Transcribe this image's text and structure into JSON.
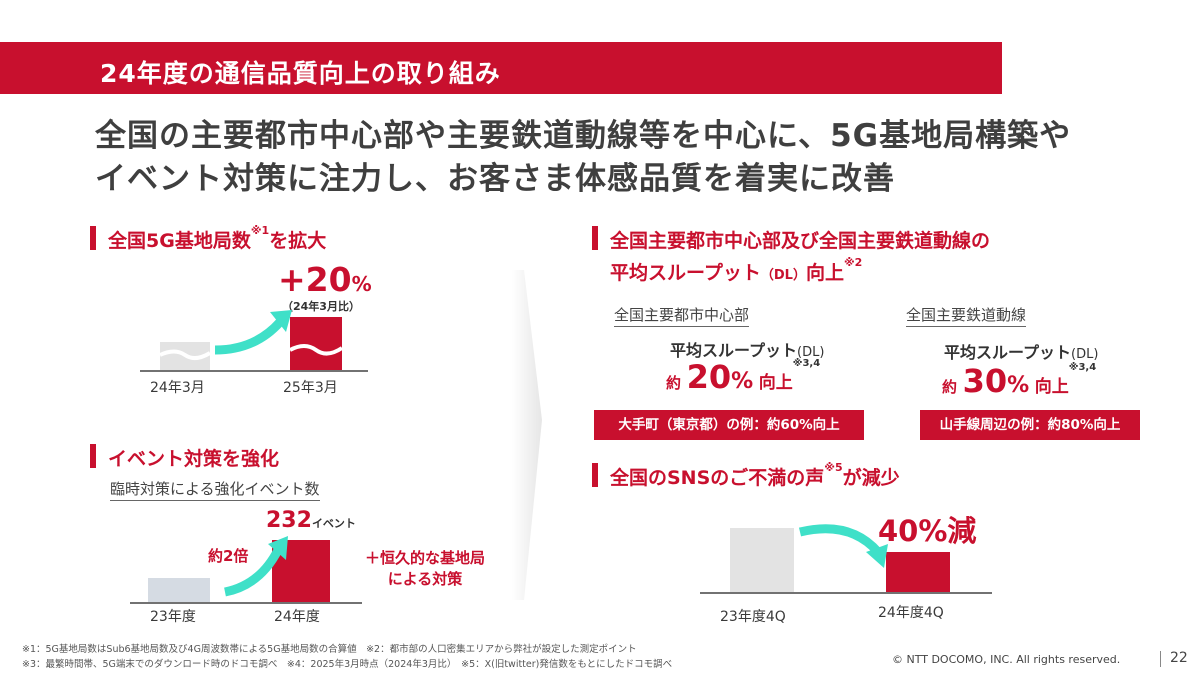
{
  "title": "24年度の通信品質向上の取り組み",
  "headline": {
    "line1": "全国の主要都市中心部や主要鉄道動線等を中心に、5G基地局構築や",
    "line2": "イベント対策に注力し、お客さま体感品質を着実に改善"
  },
  "base_stations": {
    "title": "全国5G基地局数",
    "title_sup": "※1",
    "title_suffix": "を拡大",
    "increase": "+20",
    "increase_unit": "%",
    "increase_note": "（24年3月比）",
    "categories": [
      "24年3月",
      "25年3月"
    ]
  },
  "events": {
    "title": "イベント対策を強化",
    "subtitle": "臨時対策による強化イベント数",
    "value": "232",
    "value_unit": "イベント",
    "multiplier": "約2倍",
    "note_line1": "＋恒久的な基地局",
    "note_line2": "による対策",
    "categories": [
      "23年度",
      "24年度"
    ]
  },
  "throughput": {
    "title_line1": "全国主要都市中心部及び全国主要鉄道動線の",
    "title_line2_main": "平均スループット",
    "title_line2_dl": "（DL）",
    "title_line2_suffix": "向上",
    "title_sup": "※2",
    "city": {
      "label": "全国主要都市中心部",
      "metric": "平均スループット",
      "metric_dl": "(DL)",
      "prefix": "約",
      "value": "20",
      "unit": "%",
      "suffix": "向上",
      "sup": "※3,4",
      "example": "大手町（東京都）の例：約60%向上"
    },
    "rail": {
      "label": "全国主要鉄道動線",
      "metric": "平均スループット",
      "metric_dl": "(DL)",
      "prefix": "約",
      "value": "30",
      "unit": "%",
      "suffix": "向上",
      "sup": "※3,4",
      "example": "山手線周辺の例：約80%向上"
    }
  },
  "sns": {
    "title": "全国のSNSのご不満の声",
    "title_sup": "※5",
    "title_suffix": "が減少",
    "reduction": "40%減",
    "categories": [
      "23年度4Q",
      "24年度4Q"
    ]
  },
  "chart_data": [
    {
      "type": "bar",
      "title": "全国5G基地局数を拡大",
      "categories": [
        "24年3月",
        "25年3月"
      ],
      "annotation": "+20%（24年3月比）"
    },
    {
      "type": "bar",
      "title": "臨時対策による強化イベント数",
      "categories": [
        "23年度",
        "24年度"
      ],
      "values": [
        null,
        232
      ],
      "annotation": "約2倍"
    },
    {
      "type": "bar",
      "title": "全国のSNSのご不満の声が減少",
      "categories": [
        "23年度4Q",
        "24年度4Q"
      ],
      "annotation": "40%減"
    }
  ],
  "footnotes": {
    "line1": "※1：5G基地局数はSub6基地局数及び4G周波数帯による5G基地局数の合算値　※2：都市部の人口密集エリアから弊社が設定した測定ポイント",
    "line2": "※3：最繁時間帯、5G端末でのダウンロード時のドコモ調べ　※4：2025年3月時点（2024年3月比）　※5：X(旧twitter)発信数をもとにしたドコモ調べ"
  },
  "copyright": "© NTT DOCOMO, INC.  All rights reserved.",
  "page_number": "22",
  "colors": {
    "accent": "#c8102e",
    "arrow": "#3fe0c8",
    "bar_gray": "#e3e3e3",
    "bar_blue_gray": "#d5dbe3"
  }
}
